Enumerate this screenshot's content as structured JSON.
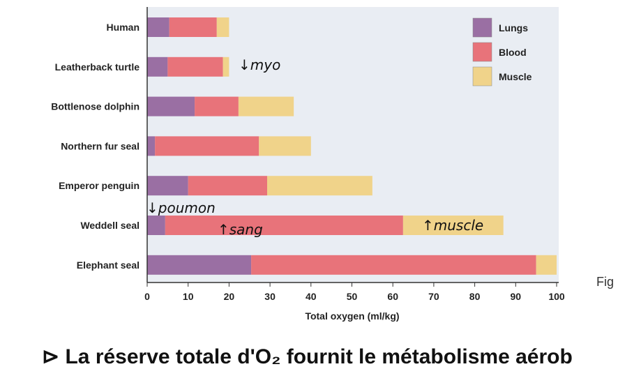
{
  "chart_data": {
    "type": "bar",
    "orientation": "horizontal",
    "stacked": true,
    "categories": [
      "Human",
      "Leatherback turtle",
      "Bottlenose dolphin",
      "Northern fur seal",
      "Emperor penguin",
      "Weddell seal",
      "Elephant seal"
    ],
    "series": [
      {
        "name": "Lungs",
        "color": "#9a6fa3",
        "values": [
          5.4,
          5,
          11.6,
          1.9,
          10,
          4.4,
          25.4
        ]
      },
      {
        "name": "Blood",
        "color": "#e8737a",
        "values": [
          11.6,
          13.5,
          10.7,
          25.4,
          19.3,
          58.1,
          69.6
        ]
      },
      {
        "name": "Muscle",
        "color": "#f0d38a",
        "values": [
          3,
          1.5,
          13.5,
          12.7,
          25.7,
          24.5,
          5
        ]
      }
    ],
    "xlabel": "Total oxygen (ml/kg)",
    "xlim": [
      0,
      100
    ],
    "xticks": [
      "0",
      "10",
      "20",
      "30",
      "40",
      "50",
      "60",
      "70",
      "80",
      "90",
      "100"
    ],
    "legend": "top-right",
    "annotations": [
      {
        "text": "↓myo",
        "category": "Leatherback turtle"
      },
      {
        "text": "↓poumon",
        "category": "Weddell seal"
      },
      {
        "text": "↑sang",
        "category": "Weddell seal"
      },
      {
        "text": "↑muscle",
        "category": "Weddell seal"
      }
    ]
  },
  "side_label": "Fig",
  "bottom_text": "⊳ La réserve totale d'O₂ fournit le métabolisme aérob"
}
